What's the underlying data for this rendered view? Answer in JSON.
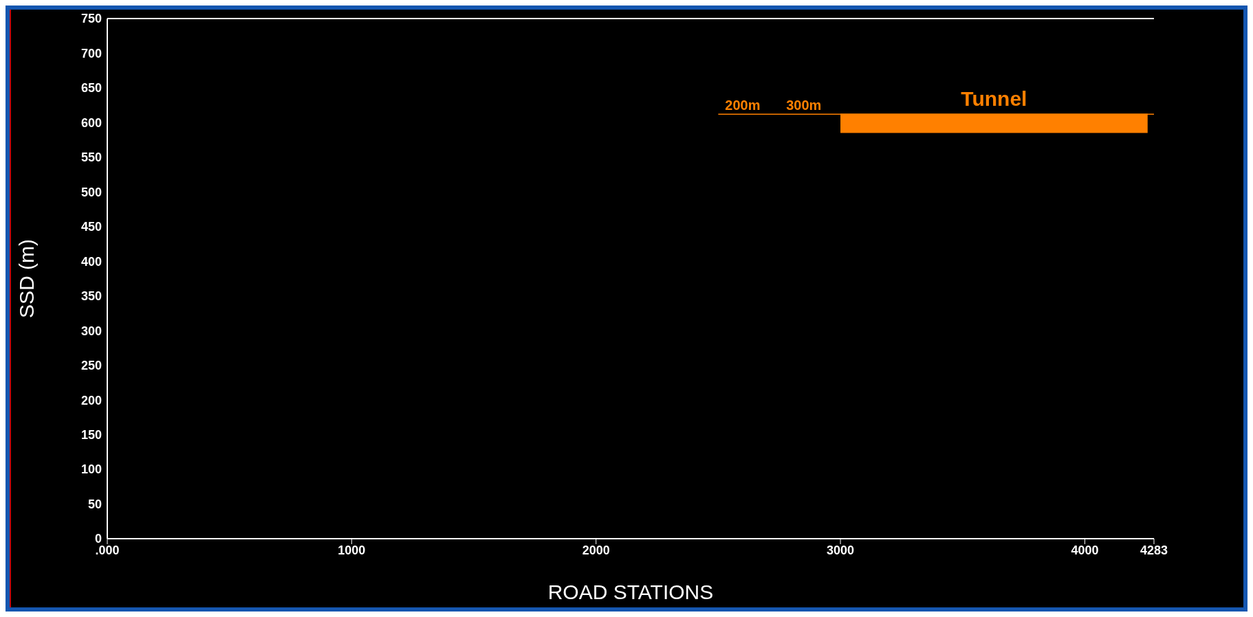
{
  "chart_data": {
    "type": "line",
    "xlabel": "ROAD STATIONS",
    "ylabel": "SSD (m)",
    "xlim": [
      0,
      4283
    ],
    "xticks": [
      {
        "value": 0,
        "label": ".000"
      },
      1000,
      2000,
      3000,
      4000,
      4283
    ],
    "ylim": [
      0,
      750
    ],
    "yticks": [
      0,
      50,
      100,
      150,
      200,
      250,
      300,
      350,
      400,
      450,
      500,
      550,
      600,
      650,
      700,
      750
    ],
    "grid": false,
    "legend": false,
    "series": [
      {
        "color": "#ff8000",
        "x": [
          2500,
          2700,
          3000,
          4283
        ],
        "values": [
          612,
          612,
          612,
          612
        ]
      },
      {
        "type": "line",
        "name": "Tunnel",
        "color": "#ff8000",
        "x": [
          3000,
          4257
        ],
        "values": [
          612,
          612
        ],
        "lower": [
          585,
          585
        ],
        "upper": [
          612,
          612
        ]
      }
    ],
    "annotations": [
      {
        "text": "200m",
        "x": 2600,
        "y": 612
      },
      {
        "text": "300m",
        "x": 2850,
        "y": 612
      }
    ]
  }
}
